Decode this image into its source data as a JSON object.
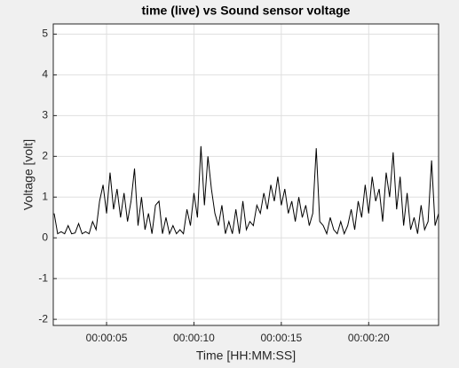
{
  "chart_data": {
    "type": "line",
    "title": "time (live) vs Sound sensor voltage",
    "x_label": "Time [HH:MM:SS]",
    "y_label": "Voltage [volt]",
    "x": [
      2.0,
      2.2,
      2.4,
      2.6,
      2.8,
      3.0,
      3.2,
      3.4,
      3.6,
      3.8,
      4.0,
      4.2,
      4.4,
      4.6,
      4.8,
      5.0,
      5.2,
      5.4,
      5.6,
      5.8,
      6.0,
      6.2,
      6.4,
      6.6,
      6.8,
      7.0,
      7.2,
      7.4,
      7.6,
      7.8,
      8.0,
      8.2,
      8.4,
      8.6,
      8.8,
      9.0,
      9.2,
      9.4,
      9.6,
      9.8,
      10.0,
      10.2,
      10.4,
      10.6,
      10.8,
      11.0,
      11.2,
      11.4,
      11.6,
      11.8,
      12.0,
      12.2,
      12.4,
      12.6,
      12.8,
      13.0,
      13.2,
      13.4,
      13.6,
      13.8,
      14.0,
      14.2,
      14.4,
      14.6,
      14.8,
      15.0,
      15.2,
      15.4,
      15.6,
      15.8,
      16.0,
      16.2,
      16.4,
      16.6,
      16.8,
      17.0,
      17.2,
      17.4,
      17.6,
      17.8,
      18.0,
      18.2,
      18.4,
      18.6,
      18.8,
      19.0,
      19.2,
      19.4,
      19.6,
      19.8,
      20.0,
      20.2,
      20.4,
      20.6,
      20.8,
      21.0,
      21.2,
      21.4,
      21.6,
      21.8,
      22.0,
      22.2,
      22.4,
      22.6,
      22.8,
      23.0,
      23.2,
      23.4,
      23.6,
      23.8,
      24.0
    ],
    "series": [
      {
        "name": "Sound sensor voltage",
        "color": "#000000",
        "values": [
          0.6,
          0.1,
          0.15,
          0.1,
          0.3,
          0.1,
          0.12,
          0.35,
          0.1,
          0.15,
          0.1,
          0.4,
          0.2,
          0.9,
          1.3,
          0.6,
          1.6,
          0.7,
          1.2,
          0.5,
          1.1,
          0.4,
          0.9,
          1.7,
          0.3,
          1.0,
          0.2,
          0.6,
          0.1,
          0.8,
          0.9,
          0.1,
          0.5,
          0.1,
          0.3,
          0.1,
          0.2,
          0.1,
          0.7,
          0.3,
          1.1,
          0.5,
          2.25,
          0.8,
          2.0,
          1.2,
          0.6,
          0.3,
          0.8,
          0.1,
          0.4,
          0.1,
          0.7,
          0.1,
          0.9,
          0.2,
          0.4,
          0.3,
          0.8,
          0.6,
          1.1,
          0.7,
          1.3,
          0.9,
          1.5,
          0.8,
          1.2,
          0.6,
          0.9,
          0.4,
          1.0,
          0.5,
          0.8,
          0.3,
          0.6,
          2.2,
          0.4,
          0.3,
          0.1,
          0.5,
          0.2,
          0.1,
          0.4,
          0.1,
          0.3,
          0.7,
          0.2,
          0.9,
          0.5,
          1.3,
          0.6,
          1.5,
          0.9,
          1.2,
          0.4,
          1.6,
          1.0,
          2.1,
          0.7,
          1.5,
          0.3,
          1.1,
          0.2,
          0.5,
          0.1,
          0.8,
          0.2,
          0.4,
          1.9,
          0.3,
          0.6
        ]
      }
    ],
    "xlim": [
      1.95,
      24.0
    ],
    "xticks": [
      {
        "value": 5,
        "label": "00:00:05"
      },
      {
        "value": 10,
        "label": "00:00:10"
      },
      {
        "value": 15,
        "label": "00:00:15"
      },
      {
        "value": 20,
        "label": "00:00:20"
      }
    ],
    "ylim": [
      -2.15,
      5.25
    ],
    "yticks": [
      -2,
      -1,
      0,
      1,
      2,
      3,
      4,
      5
    ],
    "grid": true
  }
}
